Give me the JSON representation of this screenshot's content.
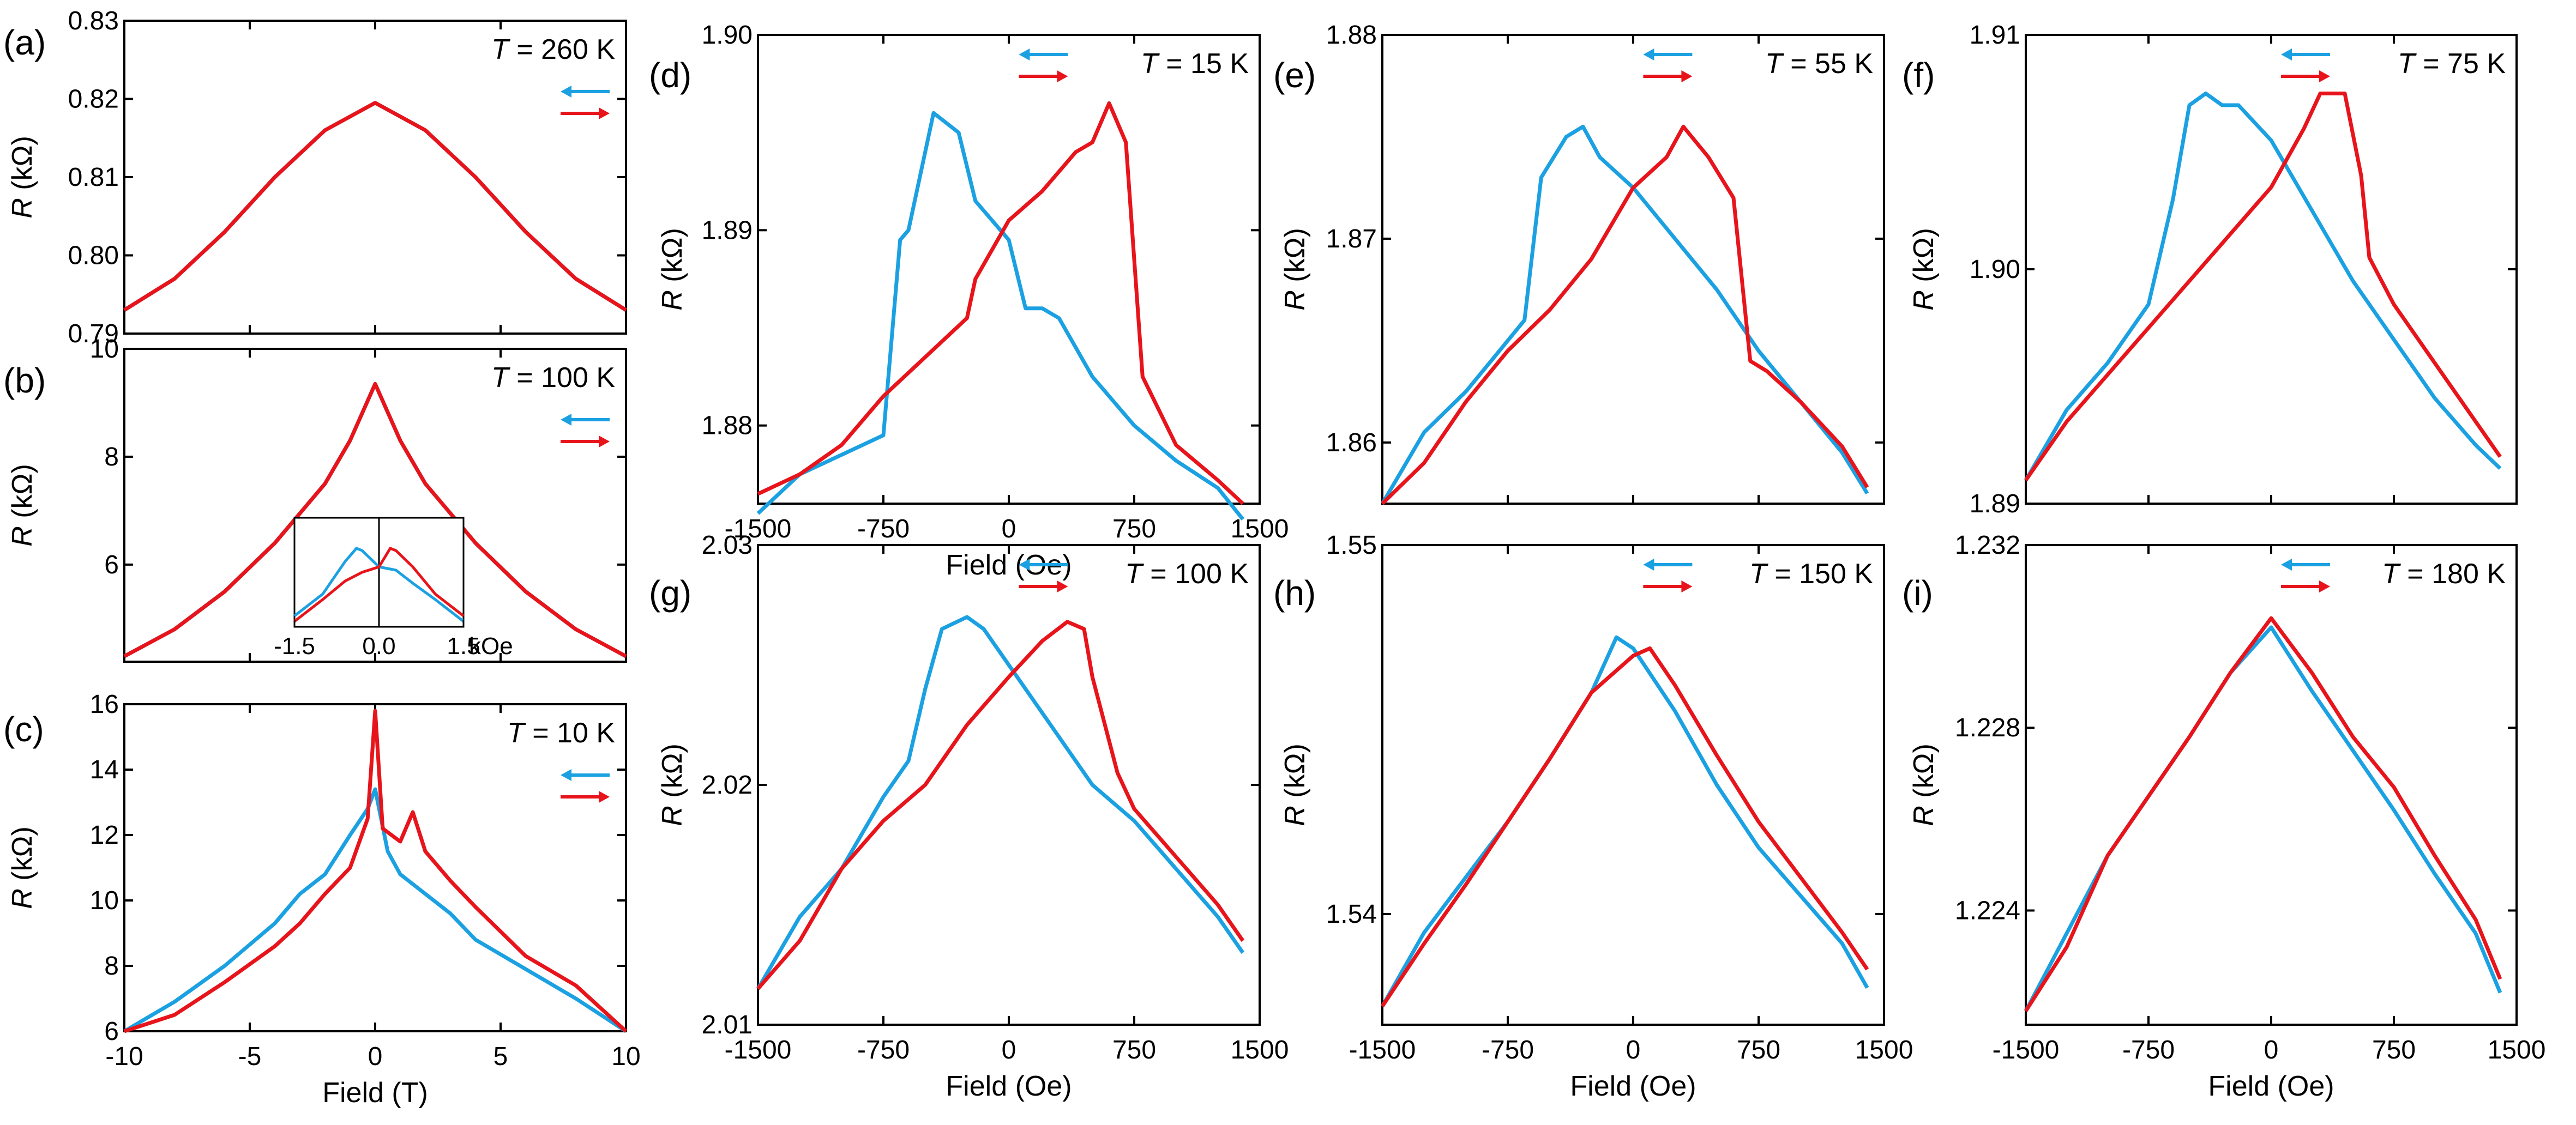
{
  "figure": {
    "type": "multi-panel magnetoresistance figure"
  },
  "colors": {
    "sweep_down": "#1ba1e2",
    "sweep_up": "#e8141b",
    "axis": "#000000"
  },
  "legend": {
    "sweep_down_icon": "left-arrow-icon",
    "sweep_up_icon": "right-arrow-icon"
  },
  "chart_data": [
    {
      "id": "a",
      "type": "line",
      "panel_label": "(a)",
      "temperature": "T = 260 K",
      "xlabel": "",
      "ylabel": "R (kΩ)",
      "xlim": [
        -10,
        10
      ],
      "ylim": [
        0.79,
        0.83
      ],
      "xticks": [],
      "yticks": [
        "0.79",
        "0.80",
        "0.81",
        "0.82",
        "0.83"
      ],
      "series": [
        {
          "name": "down",
          "x": [
            -10,
            -8,
            -6,
            -4,
            -2,
            0,
            2,
            4,
            6,
            8,
            10
          ],
          "values": [
            0.793,
            0.797,
            0.803,
            0.81,
            0.816,
            0.8195,
            0.816,
            0.81,
            0.803,
            0.797,
            0.793
          ]
        },
        {
          "name": "up",
          "x": [
            -10,
            -8,
            -6,
            -4,
            -2,
            0,
            2,
            4,
            6,
            8,
            10
          ],
          "values": [
            0.793,
            0.797,
            0.803,
            0.81,
            0.816,
            0.8195,
            0.816,
            0.81,
            0.803,
            0.797,
            0.793
          ]
        }
      ]
    },
    {
      "id": "b",
      "type": "line",
      "panel_label": "(b)",
      "temperature": "T = 100 K",
      "xlabel": "",
      "ylabel": "R (kΩ)",
      "xlim": [
        -10,
        10
      ],
      "ylim": [
        4.2,
        10
      ],
      "xticks": [],
      "yticks": [
        "6",
        "8",
        "10"
      ],
      "series": [
        {
          "name": "down",
          "x": [
            -10,
            -8,
            -6,
            -4,
            -2,
            -1,
            0,
            1,
            2,
            4,
            6,
            8,
            10
          ],
          "values": [
            4.3,
            4.8,
            5.5,
            6.4,
            7.5,
            8.3,
            9.35,
            8.3,
            7.5,
            6.4,
            5.5,
            4.8,
            4.3
          ]
        },
        {
          "name": "up",
          "x": [
            -10,
            -8,
            -6,
            -4,
            -2,
            -1,
            0,
            1,
            2,
            4,
            6,
            8,
            10
          ],
          "values": [
            4.3,
            4.8,
            5.5,
            6.4,
            7.5,
            8.3,
            9.35,
            8.3,
            7.5,
            6.4,
            5.5,
            4.8,
            4.3
          ]
        }
      ],
      "inset": {
        "xlim": [
          -1.5,
          1.5
        ],
        "ylim": [
          0,
          1
        ],
        "xticks": [
          "-1.5",
          "0.0",
          "1.5"
        ],
        "xunit": "kOe",
        "series": [
          {
            "name": "down",
            "x": [
              -1.5,
              -1.0,
              -0.6,
              -0.4,
              -0.3,
              0.0,
              0.3,
              0.6,
              1.0,
              1.5
            ],
            "values": [
              0.1,
              0.3,
              0.6,
              0.72,
              0.7,
              0.55,
              0.52,
              0.4,
              0.25,
              0.05
            ]
          },
          {
            "name": "up",
            "x": [
              -1.5,
              -1.0,
              -0.6,
              -0.3,
              0.0,
              0.2,
              0.3,
              0.6,
              1.0,
              1.5
            ],
            "values": [
              0.05,
              0.25,
              0.42,
              0.5,
              0.55,
              0.72,
              0.7,
              0.55,
              0.3,
              0.1
            ]
          }
        ]
      }
    },
    {
      "id": "c",
      "type": "line",
      "panel_label": "(c)",
      "temperature": "T = 10 K",
      "xlabel": "Field (T)",
      "ylabel": "R (kΩ)",
      "xlim": [
        -10,
        10
      ],
      "ylim": [
        6,
        16
      ],
      "xticks": [
        "-10",
        "-5",
        "0",
        "5",
        "10"
      ],
      "yticks": [
        "6",
        "8",
        "10",
        "12",
        "14",
        "16"
      ],
      "series": [
        {
          "name": "down",
          "x": [
            -10,
            -8,
            -6,
            -4,
            -3,
            -2,
            -1,
            -0.3,
            0,
            0.5,
            1,
            2,
            3,
            4,
            6,
            8,
            10
          ],
          "values": [
            6.0,
            6.9,
            8.0,
            9.3,
            10.2,
            10.8,
            12.0,
            12.8,
            13.4,
            11.5,
            10.8,
            10.2,
            9.6,
            8.8,
            7.9,
            7.0,
            6.0
          ]
        },
        {
          "name": "up",
          "x": [
            -10,
            -8,
            -6,
            -4,
            -3,
            -2,
            -1,
            -0.3,
            0,
            0.3,
            1,
            1.5,
            2,
            3,
            4,
            6,
            8,
            10
          ],
          "values": [
            6.0,
            6.5,
            7.5,
            8.6,
            9.3,
            10.2,
            11.0,
            12.5,
            15.8,
            12.2,
            11.8,
            12.7,
            11.5,
            10.6,
            9.8,
            8.3,
            7.4,
            6.0
          ]
        }
      ]
    },
    {
      "id": "d",
      "type": "line",
      "panel_label": "(d)",
      "temperature": "T = 15 K",
      "xlabel": "Field (Oe)",
      "ylabel": "R (kΩ)",
      "xlim": [
        -1500,
        1500
      ],
      "ylim": [
        1.876,
        1.9
      ],
      "xticks": [
        "-1500",
        "-750",
        "0",
        "750",
        "1500"
      ],
      "yticks": [
        "1.88",
        "1.89",
        "1.90"
      ],
      "series": [
        {
          "name": "down",
          "x": [
            -1500,
            -1250,
            -1000,
            -750,
            -650,
            -600,
            -450,
            -300,
            -200,
            0,
            100,
            200,
            300,
            500,
            750,
            1000,
            1250,
            1400
          ],
          "values": [
            1.8755,
            1.8775,
            1.8785,
            1.8795,
            1.8895,
            1.89,
            1.896,
            1.895,
            1.8915,
            1.8895,
            1.886,
            1.886,
            1.8855,
            1.8825,
            1.88,
            1.8782,
            1.8768,
            1.8752
          ]
        },
        {
          "name": "up",
          "x": [
            -1500,
            -1250,
            -1000,
            -750,
            -500,
            -250,
            -200,
            0,
            200,
            400,
            500,
            600,
            700,
            800,
            1000,
            1250,
            1400
          ],
          "values": [
            1.8765,
            1.8775,
            1.879,
            1.8815,
            1.8835,
            1.8855,
            1.8875,
            1.8905,
            1.892,
            1.894,
            1.8945,
            1.8965,
            1.8945,
            1.8825,
            1.879,
            1.8772,
            1.876
          ]
        }
      ]
    },
    {
      "id": "e",
      "type": "line",
      "panel_label": "(e)",
      "temperature": "T = 55 K",
      "xlabel": "",
      "ylabel": "R (kΩ)",
      "xlim": [
        -1500,
        1500
      ],
      "ylim": [
        1.857,
        1.88
      ],
      "xticks": [],
      "yticks": [
        "1.86",
        "1.87",
        "1.88"
      ],
      "series": [
        {
          "name": "down",
          "x": [
            -1500,
            -1250,
            -1000,
            -800,
            -650,
            -550,
            -400,
            -300,
            -200,
            0,
            250,
            500,
            750,
            1000,
            1250,
            1400
          ],
          "values": [
            1.857,
            1.8605,
            1.8625,
            1.8645,
            1.866,
            1.873,
            1.875,
            1.8755,
            1.874,
            1.8725,
            1.87,
            1.8675,
            1.8645,
            1.862,
            1.8595,
            1.8575
          ]
        },
        {
          "name": "up",
          "x": [
            -1500,
            -1250,
            -1000,
            -750,
            -500,
            -250,
            0,
            200,
            300,
            450,
            600,
            700,
            800,
            1000,
            1250,
            1400
          ],
          "values": [
            1.857,
            1.859,
            1.862,
            1.8645,
            1.8665,
            1.869,
            1.8725,
            1.874,
            1.8755,
            1.874,
            1.872,
            1.864,
            1.8635,
            1.862,
            1.8598,
            1.8578
          ]
        }
      ]
    },
    {
      "id": "f",
      "type": "line",
      "panel_label": "(f)",
      "temperature": "T = 75 K",
      "xlabel": "",
      "ylabel": "R (kΩ)",
      "xlim": [
        -1500,
        1500
      ],
      "ylim": [
        1.89,
        1.91
      ],
      "xticks": [],
      "yticks": [
        "1.89",
        "1.90",
        "1.91"
      ],
      "series": [
        {
          "name": "down",
          "x": [
            -1500,
            -1250,
            -1000,
            -750,
            -600,
            -500,
            -400,
            -300,
            -200,
            0,
            250,
            500,
            750,
            1000,
            1250,
            1400
          ],
          "values": [
            1.891,
            1.894,
            1.896,
            1.8985,
            1.903,
            1.907,
            1.9075,
            1.907,
            1.907,
            1.9055,
            1.9025,
            1.8995,
            1.897,
            1.8945,
            1.8925,
            1.8915
          ]
        },
        {
          "name": "up",
          "x": [
            -1500,
            -1250,
            -1000,
            -750,
            -500,
            -250,
            0,
            200,
            300,
            450,
            550,
            600,
            750,
            1000,
            1250,
            1400
          ],
          "values": [
            1.891,
            1.8935,
            1.8955,
            1.8975,
            1.8995,
            1.9015,
            1.9035,
            1.906,
            1.9075,
            1.9075,
            1.904,
            1.9005,
            1.8985,
            1.896,
            1.8935,
            1.892
          ]
        }
      ]
    },
    {
      "id": "g",
      "type": "line",
      "panel_label": "(g)",
      "temperature": "T = 100 K",
      "xlabel": "Field (Oe)",
      "ylabel": "R (kΩ)",
      "xlim": [
        -1500,
        1500
      ],
      "ylim": [
        2.01,
        2.03
      ],
      "xticks": [
        "-1500",
        "-750",
        "0",
        "750",
        "1500"
      ],
      "yticks": [
        "2.01",
        "2.02",
        "2.03"
      ],
      "series": [
        {
          "name": "down",
          "x": [
            -1500,
            -1250,
            -1000,
            -750,
            -600,
            -500,
            -400,
            -250,
            -150,
            0,
            250,
            500,
            750,
            1000,
            1250,
            1400
          ],
          "values": [
            2.0115,
            2.0145,
            2.0165,
            2.0195,
            2.021,
            2.024,
            2.0265,
            2.027,
            2.0265,
            2.025,
            2.0225,
            2.02,
            2.0185,
            2.0165,
            2.0145,
            2.013
          ]
        },
        {
          "name": "up",
          "x": [
            -1500,
            -1250,
            -1000,
            -750,
            -500,
            -250,
            0,
            200,
            350,
            450,
            500,
            650,
            750,
            1000,
            1250,
            1400
          ],
          "values": [
            2.0115,
            2.0135,
            2.0165,
            2.0185,
            2.02,
            2.0225,
            2.0245,
            2.026,
            2.0268,
            2.0265,
            2.0245,
            2.0205,
            2.019,
            2.017,
            2.015,
            2.0135
          ]
        }
      ]
    },
    {
      "id": "h",
      "type": "line",
      "panel_label": "(h)",
      "temperature": "T = 150 K",
      "xlabel": "Field (Oe)",
      "ylabel": "R (kΩ)",
      "xlim": [
        -1500,
        1500
      ],
      "ylim": [
        1.537,
        1.55
      ],
      "xticks": [
        "-1500",
        "-750",
        "0",
        "750",
        "1500"
      ],
      "yticks": [
        "1.54",
        "1.55"
      ],
      "series": [
        {
          "name": "down",
          "x": [
            -1500,
            -1250,
            -1000,
            -750,
            -500,
            -250,
            -100,
            0,
            250,
            500,
            750,
            1000,
            1250,
            1400
          ],
          "values": [
            1.5375,
            1.5395,
            1.541,
            1.5425,
            1.5442,
            1.546,
            1.5475,
            1.5472,
            1.5455,
            1.5435,
            1.5418,
            1.5405,
            1.5392,
            1.538
          ]
        },
        {
          "name": "up",
          "x": [
            -1500,
            -1250,
            -1000,
            -750,
            -500,
            -250,
            0,
            100,
            250,
            500,
            750,
            1000,
            1250,
            1400
          ],
          "values": [
            1.5375,
            1.5392,
            1.5408,
            1.5425,
            1.5442,
            1.546,
            1.547,
            1.5472,
            1.5462,
            1.5443,
            1.5425,
            1.541,
            1.5395,
            1.5385
          ]
        }
      ]
    },
    {
      "id": "i",
      "type": "line",
      "panel_label": "(i)",
      "temperature": "T = 180 K",
      "xlabel": "Field (Oe)",
      "ylabel": "R (kΩ)",
      "xlim": [
        -1500,
        1500
      ],
      "ylim": [
        1.2215,
        1.232
      ],
      "xticks": [
        "-1500",
        "-750",
        "0",
        "750",
        "1500"
      ],
      "yticks": [
        "1.224",
        "1.228",
        "1.232"
      ],
      "series": [
        {
          "name": "down",
          "x": [
            -1500,
            -1250,
            -1000,
            -750,
            -500,
            -250,
            0,
            250,
            500,
            750,
            1000,
            1250,
            1400
          ],
          "values": [
            1.2218,
            1.2235,
            1.2252,
            1.2265,
            1.2278,
            1.2292,
            1.2302,
            1.2288,
            1.2275,
            1.2262,
            1.2248,
            1.2235,
            1.2222
          ]
        },
        {
          "name": "up",
          "x": [
            -1500,
            -1250,
            -1000,
            -750,
            -500,
            -250,
            0,
            250,
            500,
            750,
            1000,
            1250,
            1400
          ],
          "values": [
            1.2218,
            1.2232,
            1.2252,
            1.2265,
            1.2278,
            1.2292,
            1.2304,
            1.2292,
            1.2278,
            1.2267,
            1.2252,
            1.2238,
            1.2225
          ]
        }
      ]
    }
  ]
}
